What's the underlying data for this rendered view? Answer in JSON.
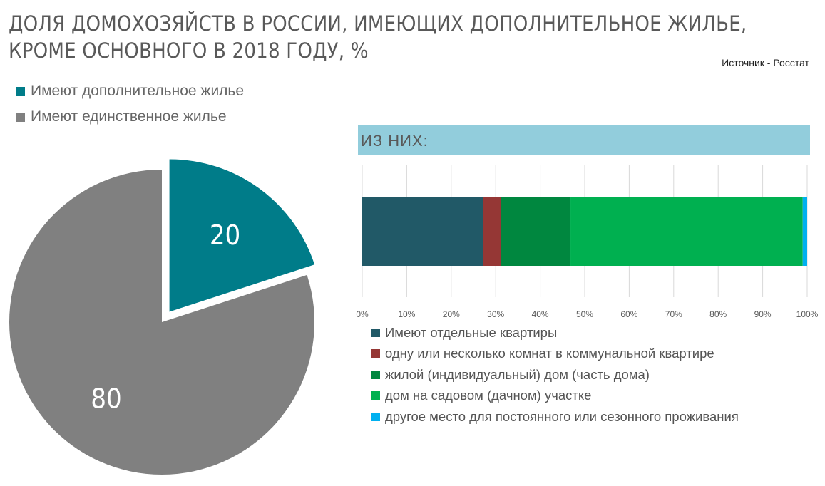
{
  "header": {
    "title_line1": "ДОЛЯ ДОМОХОЗЯЙСТВ В РОССИИ, ИМЕЮЩИХ ДОПОЛНИТЕЛЬНОЕ ЖИЛЬЕ,",
    "title_line2": "КРОМЕ ОСНОВНОГО В 2018 ГОДУ, %",
    "source": "Источник - Росстат"
  },
  "breakdown_header": "ИЗ НИХ:",
  "chart_data": [
    {
      "type": "pie",
      "title": "ДОЛЯ ДОМОХОЗЯЙСТВ В РОССИИ, ИМЕЮЩИХ ДОПОЛНИТЕЛЬНОЕ ЖИЛЬЕ, КРОМЕ ОСНОВНОГО В 2018 ГОДУ, %",
      "categories": [
        "Имеют дополнительное жилье",
        "Имеют единственное жилье"
      ],
      "values": [
        20,
        80
      ],
      "data_labels": [
        "20",
        "80"
      ],
      "colors": [
        "#007c89",
        "#808080"
      ],
      "exploded": "Имеют дополнительное жилье",
      "legend": "top-left"
    },
    {
      "type": "bar",
      "orientation": "horizontal",
      "stacked": true,
      "title": "ИЗ НИХ:",
      "xlim": [
        0,
        100
      ],
      "xticks": [
        "0%",
        "10%",
        "20%",
        "30%",
        "40%",
        "50%",
        "60%",
        "70%",
        "80%",
        "90%",
        "100%"
      ],
      "grid": "vertical",
      "legend": "bottom",
      "series": [
        {
          "name": "Имеют отдельные квартиры",
          "values": [
            27.2
          ],
          "color": "#215967"
        },
        {
          "name": "одну или несколько комнат в коммунальной квартире",
          "values": [
            4.0
          ],
          "color": "#953735"
        },
        {
          "name": "жилой (индивидуальный) дом (часть дома)",
          "values": [
            15.6
          ],
          "color": "#00873f"
        },
        {
          "name": "дом на садовом (дачном) участке",
          "values": [
            52.2
          ],
          "color": "#00b050"
        },
        {
          "name": "другое место для постоянного или сезонного проживания",
          "values": [
            1.0
          ],
          "color": "#00b0f0"
        }
      ]
    }
  ]
}
